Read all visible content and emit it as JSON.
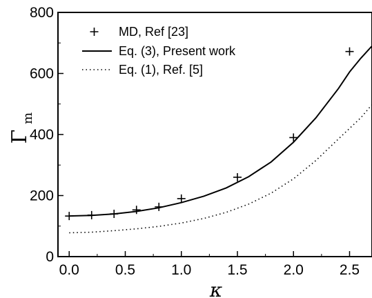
{
  "chart_data": {
    "type": "line",
    "title": "",
    "xlabel": "κ",
    "ylabel_main": "Γ",
    "ylabel_sub": "m",
    "xlim": [
      -0.1,
      2.7
    ],
    "ylim": [
      0,
      800
    ],
    "xticks": [
      0.0,
      0.5,
      1.0,
      1.5,
      2.0,
      2.5
    ],
    "xtick_labels": [
      "0.0",
      "0.5",
      "1.0",
      "1.5",
      "2.0",
      "2.5"
    ],
    "yticks": [
      0,
      200,
      400,
      600,
      800
    ],
    "ytick_labels": [
      "0",
      "200",
      "400",
      "600",
      "800"
    ],
    "grid": false,
    "legend_position": "top-left",
    "series": [
      {
        "name": "MD, Ref [23]",
        "style": "marker-plus",
        "x": [
          0.0,
          0.2,
          0.4,
          0.6,
          0.8,
          1.0,
          1.5,
          2.0,
          2.5
        ],
        "y": [
          133,
          136,
          140,
          153,
          163,
          190,
          260,
          390,
          672
        ]
      },
      {
        "name": "Eq. (3), Present work",
        "style": "solid",
        "x": [
          0.0,
          0.2,
          0.4,
          0.6,
          0.8,
          1.0,
          1.2,
          1.4,
          1.6,
          1.8,
          2.0,
          2.2,
          2.4,
          2.5,
          2.6,
          2.7
        ],
        "y": [
          133,
          135,
          140,
          148,
          160,
          177,
          198,
          225,
          262,
          310,
          375,
          455,
          550,
          605,
          650,
          690
        ]
      },
      {
        "name": "Eq. (1), Ref. [5]",
        "style": "dotted",
        "x": [
          0.0,
          0.2,
          0.4,
          0.6,
          0.8,
          1.0,
          1.2,
          1.4,
          1.6,
          1.8,
          2.0,
          2.2,
          2.4,
          2.6,
          2.7
        ],
        "y": [
          78,
          80,
          85,
          91,
          99,
          110,
          125,
          145,
          172,
          208,
          255,
          315,
          385,
          455,
          498
        ]
      }
    ]
  }
}
